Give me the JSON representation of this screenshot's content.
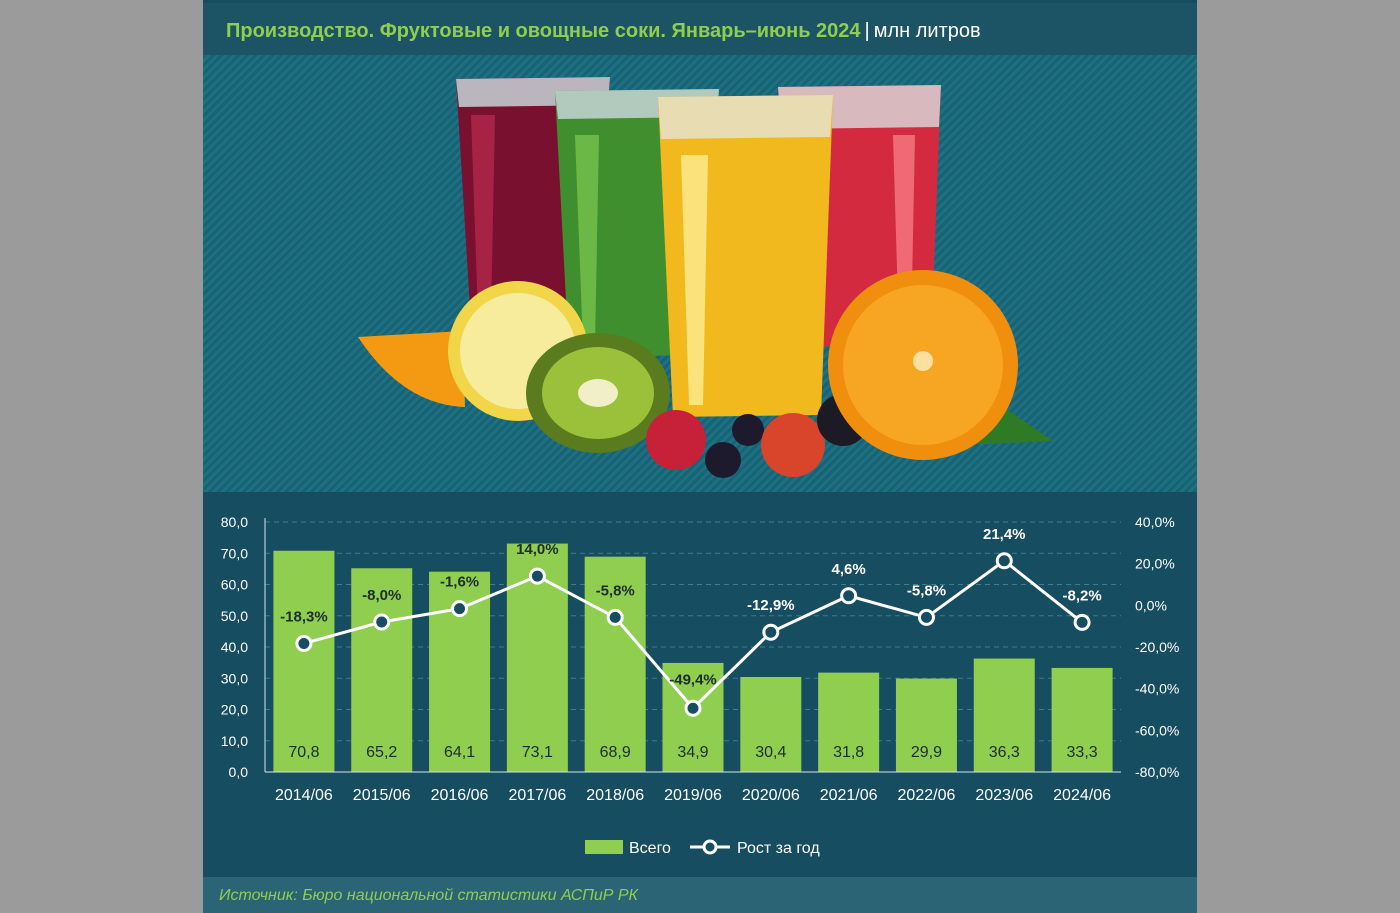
{
  "header": {
    "title": "Производство. Фруктовые и овощные соки. Январь–июнь 2024",
    "separator": "|",
    "unit": "млн литров"
  },
  "colors": {
    "bar": "#8fce4f",
    "line": "#ffffff",
    "card_background": "#174d60",
    "accent_text": "#8fce4f"
  },
  "illustration": {
    "icon": "juice-glasses-and-fruits-image"
  },
  "chart_data": {
    "type": "bar",
    "categories": [
      "2014/06",
      "2015/06",
      "2016/06",
      "2017/06",
      "2018/06",
      "2019/06",
      "2020/06",
      "2021/06",
      "2022/06",
      "2023/06",
      "2024/06"
    ],
    "series": [
      {
        "name": "Всего",
        "type": "bar",
        "axis": "left",
        "values": [
          70.8,
          65.2,
          64.1,
          73.1,
          68.9,
          34.9,
          30.4,
          31.8,
          29.9,
          36.3,
          33.3
        ],
        "labels": [
          "70,8",
          "65,2",
          "64,1",
          "73,1",
          "68,9",
          "34,9",
          "30,4",
          "31,8",
          "29,9",
          "36,3",
          "33,3"
        ]
      },
      {
        "name": "Рост за год",
        "type": "line",
        "axis": "right",
        "values": [
          -18.3,
          -8.0,
          -1.6,
          14.0,
          -5.8,
          -49.4,
          -12.9,
          4.6,
          -5.8,
          21.4,
          -8.2
        ],
        "labels": [
          "-18,3%",
          "-8,0%",
          "-1,6%",
          "14,0%",
          "-5,8%",
          "-49,4%",
          "-12,9%",
          "4,6%",
          "-5,8%",
          "21,4%",
          "-8,2%"
        ]
      }
    ],
    "y_left": {
      "min": 0,
      "max": 80,
      "ticks": [
        "0,0",
        "10,0",
        "20,0",
        "30,0",
        "40,0",
        "50,0",
        "60,0",
        "70,0",
        "80,0"
      ]
    },
    "y_right": {
      "min": -80,
      "max": 40,
      "ticks": [
        "-80,0%",
        "-60,0%",
        "-40,0%",
        "-20,0%",
        "0,0%",
        "20,0%",
        "40,0%"
      ]
    },
    "grid": true,
    "legend": "bottom-center"
  },
  "footer": {
    "source": "Источник: Бюро национальной статистики АСПиР РК"
  }
}
